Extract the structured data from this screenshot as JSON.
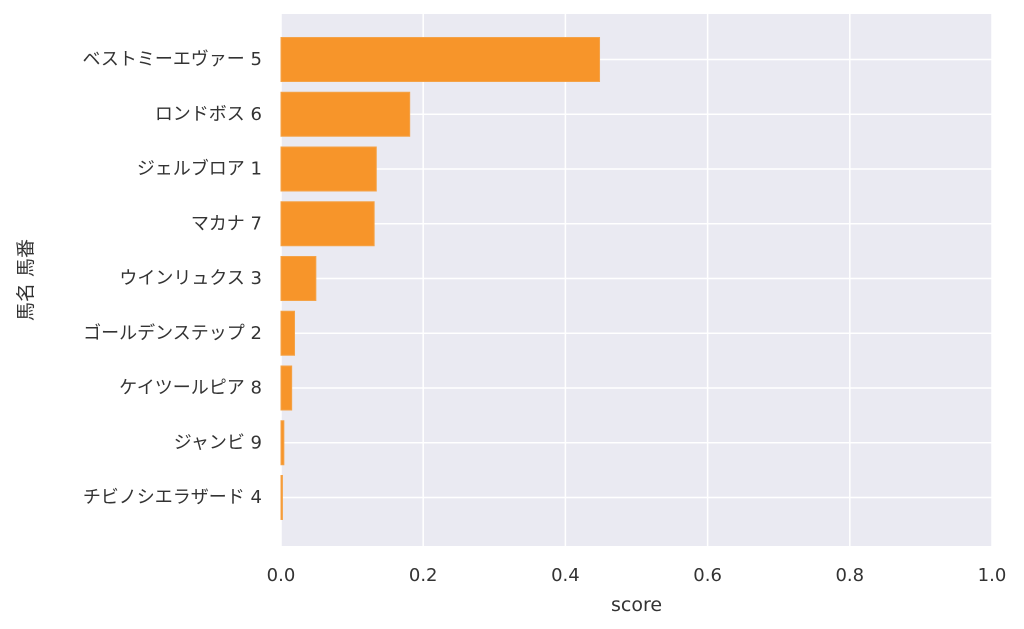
{
  "chart_data": {
    "type": "bar",
    "orientation": "horizontal",
    "categories": [
      "ベストミーエヴァー 5",
      "ロンドボス 6",
      "ジェルブロア 1",
      "マカナ 7",
      "ウインリュクス 3",
      "ゴールデンステップ 2",
      "ケイツールピア 8",
      "ジャンビ 9",
      "チビノシエラザード 4"
    ],
    "values": [
      0.448,
      0.181,
      0.134,
      0.131,
      0.049,
      0.019,
      0.015,
      0.004,
      0.002
    ],
    "xlabel": "score",
    "ylabel": "馬名 馬番",
    "xlim": [
      0,
      1.0
    ],
    "xticks": [
      "0.0",
      "0.2",
      "0.4",
      "0.6",
      "0.8",
      "1.0"
    ],
    "grid": true,
    "colors": {
      "bar": "#f7952a",
      "bar_edge": "#f4a348",
      "plot_background": "#eaeaf2",
      "grid": "#ffffff"
    }
  }
}
